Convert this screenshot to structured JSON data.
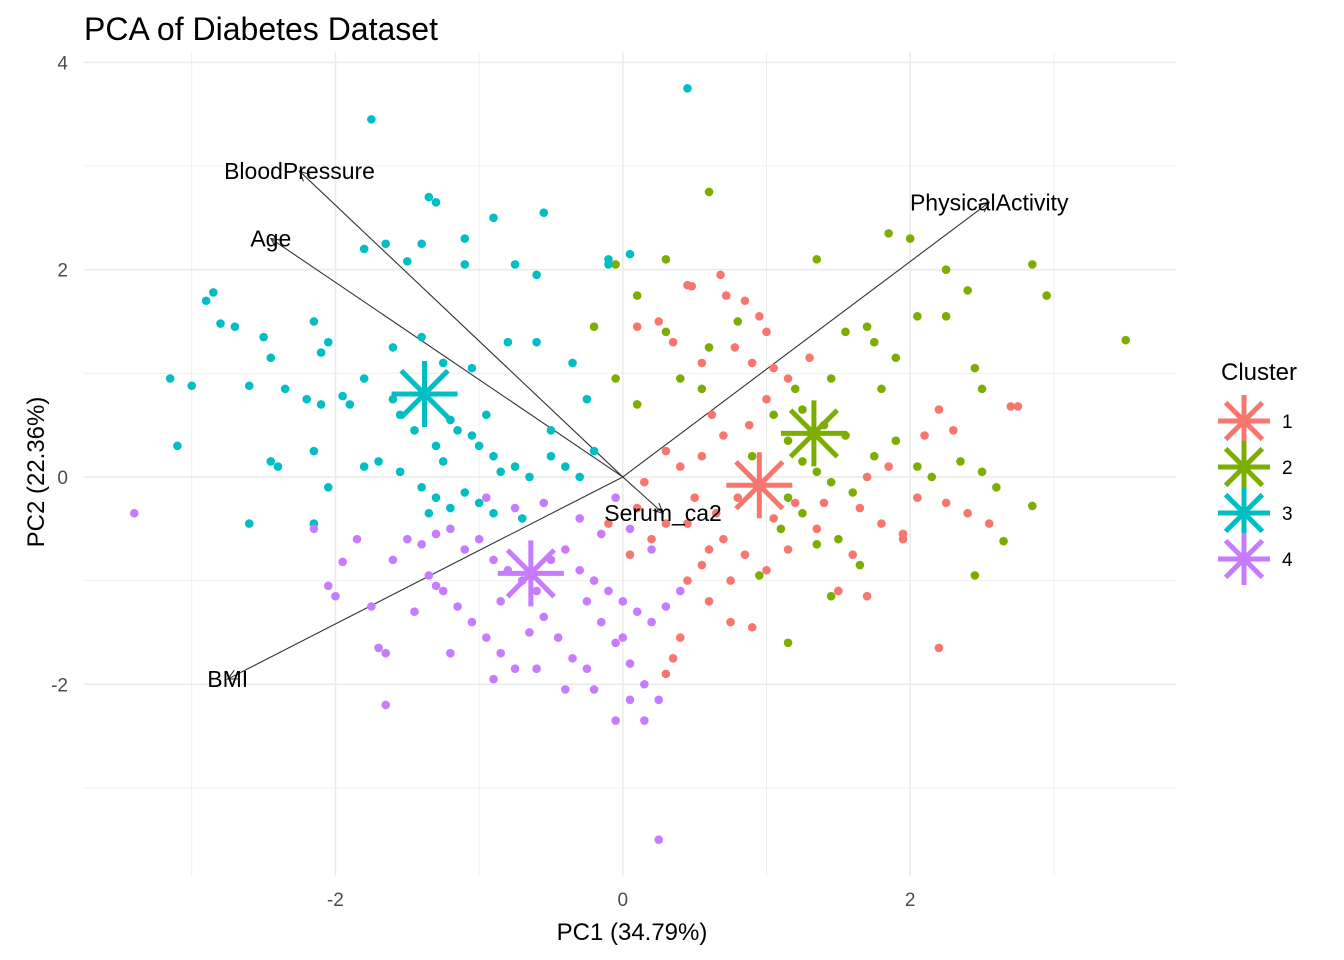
{
  "chart_data": {
    "type": "scatter",
    "title": "PCA of Diabetes Dataset",
    "xlabel": "PC1 (34.79%)",
    "ylabel": "PC2 (22.36%)",
    "xlim": [
      -3.75,
      3.85
    ],
    "ylim": [
      -3.85,
      4.1
    ],
    "x_ticks": [
      -2,
      0,
      2
    ],
    "y_ticks": [
      -2,
      0,
      2,
      4
    ],
    "x_tick_labels": [
      "-2",
      "0",
      "2"
    ],
    "y_tick_labels": [
      "-2",
      "0",
      "2",
      "4"
    ],
    "grid": true,
    "legend": {
      "title": "Cluster",
      "placement": "right",
      "entries": [
        {
          "label": "1",
          "color": "#F8766D"
        },
        {
          "label": "2",
          "color": "#7CAE00"
        },
        {
          "label": "3",
          "color": "#00BFC4"
        },
        {
          "label": "4",
          "color": "#C77CFF"
        }
      ]
    },
    "centroids": [
      {
        "cluster": "1",
        "x": 0.95,
        "y": -0.08
      },
      {
        "cluster": "2",
        "x": 1.33,
        "y": 0.42
      },
      {
        "cluster": "3",
        "x": -1.38,
        "y": 0.8
      },
      {
        "cluster": "4",
        "x": -0.64,
        "y": -0.93
      }
    ],
    "loadings": [
      {
        "name": "BloodPressure",
        "x": -2.25,
        "y": 2.95
      },
      {
        "name": "Age",
        "x": -2.45,
        "y": 2.3
      },
      {
        "name": "PhysicalActivity",
        "x": 2.55,
        "y": 2.65
      },
      {
        "name": "BMI",
        "x": -2.75,
        "y": -1.95
      },
      {
        "name": "Serum_ca2",
        "x": 0.28,
        "y": -0.35
      }
    ],
    "series": [
      {
        "name": "1",
        "color": "#F8766D",
        "points": [
          [
            0.45,
            1.85
          ],
          [
            0.48,
            1.84
          ],
          [
            0.68,
            1.95
          ],
          [
            0.72,
            1.75
          ],
          [
            0.85,
            1.7
          ],
          [
            0.95,
            1.55
          ],
          [
            1.0,
            1.4
          ],
          [
            0.25,
            1.5
          ],
          [
            0.1,
            1.45
          ],
          [
            0.35,
            1.3
          ],
          [
            0.55,
            1.1
          ],
          [
            0.78,
            1.25
          ],
          [
            0.9,
            1.1
          ],
          [
            1.05,
            1.05
          ],
          [
            1.15,
            0.95
          ],
          [
            1.3,
            1.15
          ],
          [
            0.62,
            0.6
          ],
          [
            0.7,
            0.4
          ],
          [
            0.88,
            0.5
          ],
          [
            1.0,
            0.75
          ],
          [
            0.55,
            0.2
          ],
          [
            0.4,
            0.1
          ],
          [
            0.3,
            0.25
          ],
          [
            0.15,
            -0.05
          ],
          [
            0.5,
            -0.2
          ],
          [
            0.65,
            -0.35
          ],
          [
            0.8,
            -0.2
          ],
          [
            1.05,
            -0.4
          ],
          [
            1.2,
            -0.25
          ],
          [
            1.35,
            -0.5
          ],
          [
            0.7,
            -0.6
          ],
          [
            0.85,
            -0.75
          ],
          [
            1.0,
            -0.9
          ],
          [
            0.55,
            -0.85
          ],
          [
            0.45,
            -1.0
          ],
          [
            0.6,
            -1.2
          ],
          [
            0.75,
            -1.4
          ],
          [
            0.9,
            -1.45
          ],
          [
            0.4,
            -1.55
          ],
          [
            0.35,
            -1.75
          ],
          [
            0.3,
            -1.9
          ],
          [
            1.65,
            -0.3
          ],
          [
            1.8,
            -0.45
          ],
          [
            1.95,
            -0.55
          ],
          [
            2.05,
            -0.2
          ],
          [
            2.25,
            -0.25
          ],
          [
            2.4,
            -0.35
          ],
          [
            2.55,
            -0.45
          ],
          [
            2.7,
            0.68
          ],
          [
            2.75,
            0.68
          ],
          [
            2.1,
            0.4
          ],
          [
            2.2,
            0.65
          ],
          [
            2.3,
            0.45
          ],
          [
            1.85,
            0.1
          ],
          [
            1.7,
            0.0
          ],
          [
            2.2,
            -1.65
          ],
          [
            1.95,
            -0.6
          ],
          [
            1.6,
            -0.75
          ],
          [
            1.5,
            -1.1
          ],
          [
            1.7,
            -1.15
          ],
          [
            0.2,
            -0.6
          ],
          [
            0.05,
            -0.75
          ],
          [
            -0.1,
            -0.45
          ],
          [
            0.1,
            -0.3
          ],
          [
            0.3,
            -0.45
          ],
          [
            0.45,
            -0.45
          ],
          [
            0.6,
            -0.7
          ],
          [
            0.75,
            -1.0
          ],
          [
            1.15,
            -0.7
          ],
          [
            1.4,
            -0.25
          ]
        ]
      },
      {
        "name": "2",
        "color": "#7CAE00",
        "points": [
          [
            0.6,
            2.75
          ],
          [
            -0.05,
            2.05
          ],
          [
            0.3,
            2.1
          ],
          [
            0.1,
            1.75
          ],
          [
            -0.2,
            1.45
          ],
          [
            1.35,
            2.1
          ],
          [
            1.85,
            2.35
          ],
          [
            2.0,
            2.3
          ],
          [
            2.25,
            2.0
          ],
          [
            2.85,
            2.05
          ],
          [
            2.95,
            1.75
          ],
          [
            3.5,
            1.32
          ],
          [
            2.4,
            1.8
          ],
          [
            2.05,
            1.55
          ],
          [
            2.25,
            1.55
          ],
          [
            1.7,
            1.45
          ],
          [
            1.55,
            1.4
          ],
          [
            1.75,
            1.3
          ],
          [
            1.9,
            1.15
          ],
          [
            0.3,
            1.4
          ],
          [
            0.6,
            1.25
          ],
          [
            0.8,
            1.5
          ],
          [
            -0.05,
            0.95
          ],
          [
            0.1,
            0.7
          ],
          [
            0.4,
            0.95
          ],
          [
            0.55,
            0.85
          ],
          [
            1.2,
            0.85
          ],
          [
            1.45,
            0.95
          ],
          [
            1.8,
            0.85
          ],
          [
            2.45,
            1.05
          ],
          [
            2.5,
            0.85
          ],
          [
            1.05,
            0.6
          ],
          [
            1.25,
            0.65
          ],
          [
            1.4,
            0.5
          ],
          [
            1.55,
            0.4
          ],
          [
            1.15,
            0.35
          ],
          [
            1.25,
            0.15
          ],
          [
            1.35,
            0.05
          ],
          [
            1.45,
            -0.05
          ],
          [
            1.6,
            -0.15
          ],
          [
            1.75,
            0.2
          ],
          [
            1.9,
            0.35
          ],
          [
            2.05,
            0.1
          ],
          [
            2.15,
            0.0
          ],
          [
            2.35,
            0.15
          ],
          [
            2.5,
            0.05
          ],
          [
            2.6,
            -0.1
          ],
          [
            1.15,
            -0.2
          ],
          [
            1.25,
            -0.35
          ],
          [
            1.1,
            -0.5
          ],
          [
            1.35,
            -0.65
          ],
          [
            1.5,
            -0.6
          ],
          [
            1.65,
            -0.85
          ],
          [
            2.45,
            -0.95
          ],
          [
            2.85,
            -0.28
          ],
          [
            2.65,
            -0.62
          ],
          [
            1.45,
            -1.15
          ],
          [
            1.15,
            -1.6
          ],
          [
            0.95,
            -0.95
          ],
          [
            0.9,
            0.2
          ]
        ]
      },
      {
        "name": "3",
        "color": "#00BFC4",
        "points": [
          [
            0.45,
            3.75
          ],
          [
            -1.75,
            3.45
          ],
          [
            -1.35,
            2.7
          ],
          [
            -1.3,
            2.65
          ],
          [
            -0.55,
            2.55
          ],
          [
            -0.9,
            2.5
          ],
          [
            -1.4,
            2.25
          ],
          [
            -1.65,
            2.25
          ],
          [
            -1.8,
            2.2
          ],
          [
            -1.5,
            2.08
          ],
          [
            -1.1,
            2.05
          ],
          [
            -1.1,
            2.3
          ],
          [
            -0.75,
            2.05
          ],
          [
            -0.6,
            1.95
          ],
          [
            -0.1,
            2.1
          ],
          [
            -0.1,
            2.05
          ],
          [
            0.05,
            2.15
          ],
          [
            -2.9,
            1.7
          ],
          [
            -2.85,
            1.78
          ],
          [
            -2.8,
            1.48
          ],
          [
            -2.7,
            1.45
          ],
          [
            -2.45,
            1.15
          ],
          [
            -2.5,
            1.35
          ],
          [
            -2.1,
            1.2
          ],
          [
            -2.05,
            1.3
          ],
          [
            -2.15,
            1.5
          ],
          [
            -1.6,
            1.25
          ],
          [
            -1.4,
            1.35
          ],
          [
            -1.25,
            1.1
          ],
          [
            -1.05,
            1.05
          ],
          [
            -0.8,
            1.3
          ],
          [
            -0.6,
            1.3
          ],
          [
            -0.35,
            1.1
          ],
          [
            -0.25,
            0.75
          ],
          [
            -3.15,
            0.95
          ],
          [
            -3.0,
            0.88
          ],
          [
            -2.6,
            0.88
          ],
          [
            -2.35,
            0.85
          ],
          [
            -2.2,
            0.75
          ],
          [
            -2.1,
            0.7
          ],
          [
            -1.95,
            0.78
          ],
          [
            -1.9,
            0.7
          ],
          [
            -1.8,
            0.95
          ],
          [
            -1.6,
            0.75
          ],
          [
            -1.55,
            0.6
          ],
          [
            -1.45,
            0.45
          ],
          [
            -1.3,
            0.3
          ],
          [
            -1.2,
            0.55
          ],
          [
            -1.15,
            0.45
          ],
          [
            -1.05,
            0.4
          ],
          [
            -1.0,
            0.3
          ],
          [
            -0.9,
            0.2
          ],
          [
            -0.85,
            0.05
          ],
          [
            -0.75,
            0.1
          ],
          [
            -0.65,
            0.0
          ],
          [
            -0.5,
            0.2
          ],
          [
            -0.4,
            0.1
          ],
          [
            -0.3,
            0.0
          ],
          [
            -0.2,
            0.25
          ],
          [
            -3.1,
            0.3
          ],
          [
            -2.45,
            0.15
          ],
          [
            -2.4,
            0.1
          ],
          [
            -2.15,
            0.25
          ],
          [
            -2.05,
            -0.1
          ],
          [
            -1.8,
            0.1
          ],
          [
            -1.7,
            0.15
          ],
          [
            -1.55,
            0.05
          ],
          [
            -1.4,
            -0.1
          ],
          [
            -1.3,
            -0.2
          ],
          [
            -1.2,
            -0.3
          ],
          [
            -1.1,
            -0.15
          ],
          [
            -1.0,
            -0.25
          ],
          [
            -0.9,
            -0.35
          ],
          [
            -0.7,
            -0.4
          ],
          [
            -2.6,
            -0.45
          ],
          [
            -2.15,
            -0.45
          ],
          [
            -1.35,
            -0.35
          ],
          [
            -1.25,
            0.15
          ],
          [
            -0.95,
            0.6
          ],
          [
            -0.5,
            0.45
          ]
        ]
      },
      {
        "name": "4",
        "color": "#C77CFF",
        "points": [
          [
            -3.4,
            -0.35
          ],
          [
            -2.15,
            -0.5
          ],
          [
            -1.95,
            -0.82
          ],
          [
            -2.05,
            -1.05
          ],
          [
            -2.0,
            -1.15
          ],
          [
            -1.7,
            -1.65
          ],
          [
            -1.65,
            -1.7
          ],
          [
            -1.65,
            -2.2
          ],
          [
            -1.6,
            -0.8
          ],
          [
            -1.5,
            -0.6
          ],
          [
            -1.4,
            -0.65
          ],
          [
            -1.3,
            -0.55
          ],
          [
            -1.2,
            -0.5
          ],
          [
            -1.1,
            -0.7
          ],
          [
            -1.0,
            -0.6
          ],
          [
            -0.9,
            -0.8
          ],
          [
            -0.8,
            -0.9
          ],
          [
            -0.7,
            -1.0
          ],
          [
            -0.6,
            -1.1
          ],
          [
            -0.5,
            -0.8
          ],
          [
            -0.4,
            -0.7
          ],
          [
            -0.3,
            -0.9
          ],
          [
            -0.2,
            -1.0
          ],
          [
            -0.1,
            -1.1
          ],
          [
            0.0,
            -1.2
          ],
          [
            0.1,
            -1.3
          ],
          [
            0.2,
            -1.4
          ],
          [
            0.3,
            -1.25
          ],
          [
            0.4,
            -1.1
          ],
          [
            -1.35,
            -0.95
          ],
          [
            -1.25,
            -1.1
          ],
          [
            -1.15,
            -1.25
          ],
          [
            -1.05,
            -1.4
          ],
          [
            -0.95,
            -1.55
          ],
          [
            -0.85,
            -1.7
          ],
          [
            -0.75,
            -1.85
          ],
          [
            -0.65,
            -1.5
          ],
          [
            -0.55,
            -1.35
          ],
          [
            -0.45,
            -1.55
          ],
          [
            -0.35,
            -1.75
          ],
          [
            -0.25,
            -1.2
          ],
          [
            -0.15,
            -1.4
          ],
          [
            -0.05,
            -1.6
          ],
          [
            0.05,
            -1.8
          ],
          [
            0.15,
            -2.0
          ],
          [
            0.25,
            -2.15
          ],
          [
            0.05,
            -2.15
          ],
          [
            -0.05,
            -2.35
          ],
          [
            -0.2,
            -2.05
          ],
          [
            -0.4,
            -2.05
          ],
          [
            -0.6,
            -1.85
          ],
          [
            -0.9,
            -1.95
          ],
          [
            -1.2,
            -1.7
          ],
          [
            -1.45,
            -1.3
          ],
          [
            -1.75,
            -1.25
          ],
          [
            -1.85,
            -0.6
          ],
          [
            -0.3,
            -0.4
          ],
          [
            -0.15,
            -0.55
          ],
          [
            0.05,
            -0.5
          ],
          [
            0.2,
            -0.7
          ],
          [
            -0.05,
            -0.2
          ],
          [
            -0.55,
            -0.25
          ],
          [
            -0.75,
            -0.3
          ],
          [
            -0.95,
            -0.2
          ],
          [
            0.25,
            -3.5
          ],
          [
            0.15,
            -2.35
          ],
          [
            0.0,
            -1.55
          ],
          [
            -0.25,
            -1.85
          ],
          [
            -1.3,
            -1.05
          ],
          [
            -0.85,
            -1.2
          ]
        ]
      }
    ]
  }
}
